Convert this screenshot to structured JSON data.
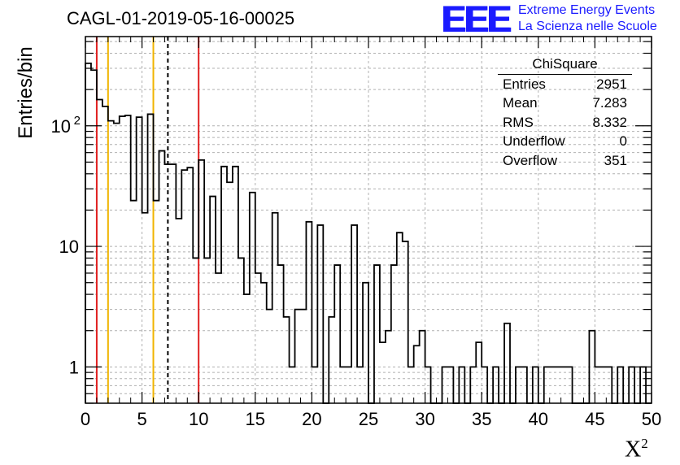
{
  "header": {
    "title": "CAGL-01-2019-05-16-00025",
    "logo_text": "EEE",
    "logo_line1": "Extreme Energy Events",
    "logo_line2": "La Scienza nelle Scuole"
  },
  "stats_box": {
    "title": "ChiSquare",
    "rows": [
      {
        "label": "Entries",
        "value": "2951"
      },
      {
        "label": "Mean",
        "value": "7.283"
      },
      {
        "label": "RMS",
        "value": "8.332"
      },
      {
        "label": "Underflow",
        "value": "0"
      },
      {
        "label": "Overflow",
        "value": "351"
      }
    ]
  },
  "chart_data": {
    "type": "bar",
    "style": "step-histogram",
    "title": "CAGL-01-2019-05-16-00025",
    "xlabel": "X",
    "xlabel_superscript": "2",
    "ylabel": "Entries/bin",
    "xlim": [
      0,
      50
    ],
    "ylim": [
      0.5,
      550
    ],
    "yscale": "log",
    "grid": true,
    "bin_width": 0.5,
    "x_ticks": [
      "0",
      "5",
      "10",
      "15",
      "20",
      "25",
      "30",
      "35",
      "40",
      "45",
      "50"
    ],
    "y_ticks": [
      {
        "value": 1,
        "label": "1"
      },
      {
        "value": 10,
        "label": "10"
      },
      {
        "value": 100,
        "label": "10",
        "exp": "2"
      }
    ],
    "values": [
      330,
      290,
      165,
      145,
      110,
      105,
      120,
      122,
      24,
      118,
      19,
      125,
      24,
      62,
      48,
      48,
      17,
      43,
      45,
      8,
      52,
      8,
      26,
      6,
      46,
      34,
      46,
      8,
      4,
      28,
      6,
      5,
      3,
      19,
      7,
      2.6,
      1,
      3,
      3,
      16,
      1,
      15,
      0.5,
      2.6,
      7,
      1,
      1,
      15,
      1,
      5,
      0.5,
      7,
      1.6,
      2,
      7,
      13,
      11,
      1,
      1.5,
      2,
      1,
      0.5,
      0.5,
      1,
      1,
      0.5,
      1,
      0.5,
      1,
      1.6,
      1,
      0.5,
      1,
      0.5,
      2.3,
      0.5,
      1,
      1,
      0.5,
      1,
      0.5,
      1,
      1,
      1,
      1,
      1,
      0.5,
      0.5,
      0.5,
      2,
      1,
      1,
      1,
      0.5,
      1,
      0.5,
      1,
      0.5,
      1,
      0.5
    ],
    "vertical_lines": [
      {
        "x": 1,
        "color": "#e02020",
        "style": "solid"
      },
      {
        "x": 2,
        "color": "#f0b400",
        "style": "solid"
      },
      {
        "x": 6,
        "color": "#f0b400",
        "style": "solid"
      },
      {
        "x": 7.283,
        "color": "#000000",
        "style": "dashed"
      },
      {
        "x": 10,
        "color": "#e02020",
        "style": "solid"
      }
    ]
  }
}
